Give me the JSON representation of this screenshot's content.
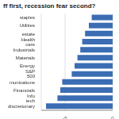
{
  "chart_data": {
    "type": "bar",
    "orientation": "horizontal",
    "title": "ff first, recession fear second?",
    "categories": [
      "staples",
      "Utilities",
      "estate",
      "Health care",
      "Industrials",
      "Materials",
      "Energy",
      "S&P 500",
      "munications",
      "Financials",
      "Info tech",
      "discretionary"
    ],
    "values": [
      -2.2,
      -2.5,
      -2.9,
      -3.2,
      -3.4,
      -3.7,
      -4.0,
      -4.3,
      -5.3,
      -5.5,
      -5.8,
      -7.0
    ],
    "color": "#3b6db4",
    "xlim": [
      -7.5,
      0
    ],
    "xticks": [
      -5,
      0
    ],
    "grid": true
  }
}
